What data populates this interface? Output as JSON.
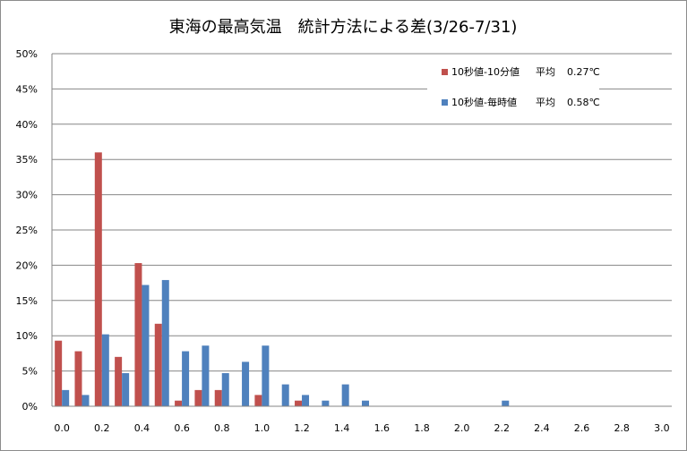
{
  "chart_data": {
    "type": "bar",
    "title": "東海の最高気温　統計方法による差(3/26-7/31)",
    "ylim": [
      0,
      50
    ],
    "y_ticks": [
      "0%",
      "5%",
      "10%",
      "15%",
      "20%",
      "25%",
      "30%",
      "35%",
      "40%",
      "45%",
      "50%"
    ],
    "x_tick_labels": [
      "0.0",
      "0.2",
      "0.4",
      "0.6",
      "0.8",
      "1.0",
      "1.2",
      "1.4",
      "1.6",
      "1.8",
      "2.0",
      "2.2",
      "2.4",
      "2.6",
      "2.8",
      "3.0"
    ],
    "categories": [
      "0.0",
      "0.1",
      "0.2",
      "0.3",
      "0.4",
      "0.5",
      "0.6",
      "0.7",
      "0.8",
      "0.9",
      "1.0",
      "1.1",
      "1.2",
      "1.3",
      "1.4",
      "1.5",
      "1.6",
      "1.7",
      "1.8",
      "1.9",
      "2.0",
      "2.1",
      "2.2",
      "2.3",
      "2.4",
      "2.5",
      "2.6",
      "2.7",
      "2.8",
      "2.9"
    ],
    "grid": true,
    "legend_position": "top-right",
    "series": [
      {
        "name": "10秒値-10分値",
        "mean_label": "平均",
        "mean_value": "0.27℃",
        "color": "#c0504d",
        "values": [
          9.3,
          7.8,
          36.0,
          7.0,
          20.3,
          11.7,
          0.8,
          2.3,
          2.3,
          0,
          1.6,
          0,
          0.8,
          0,
          0,
          0,
          0,
          0,
          0,
          0,
          0,
          0,
          0,
          0,
          0,
          0,
          0,
          0,
          0,
          0
        ]
      },
      {
        "name": "10秒値-毎時値",
        "mean_label": "平均",
        "mean_value": "0.58℃",
        "color": "#4f81bd",
        "values": [
          2.3,
          1.6,
          10.2,
          4.7,
          17.2,
          17.9,
          7.8,
          8.6,
          4.7,
          6.3,
          8.6,
          3.1,
          1.6,
          0.8,
          3.1,
          0.8,
          0,
          0,
          0,
          0,
          0,
          0,
          0.8,
          0,
          0,
          0,
          0,
          0,
          0,
          0
        ]
      }
    ]
  }
}
